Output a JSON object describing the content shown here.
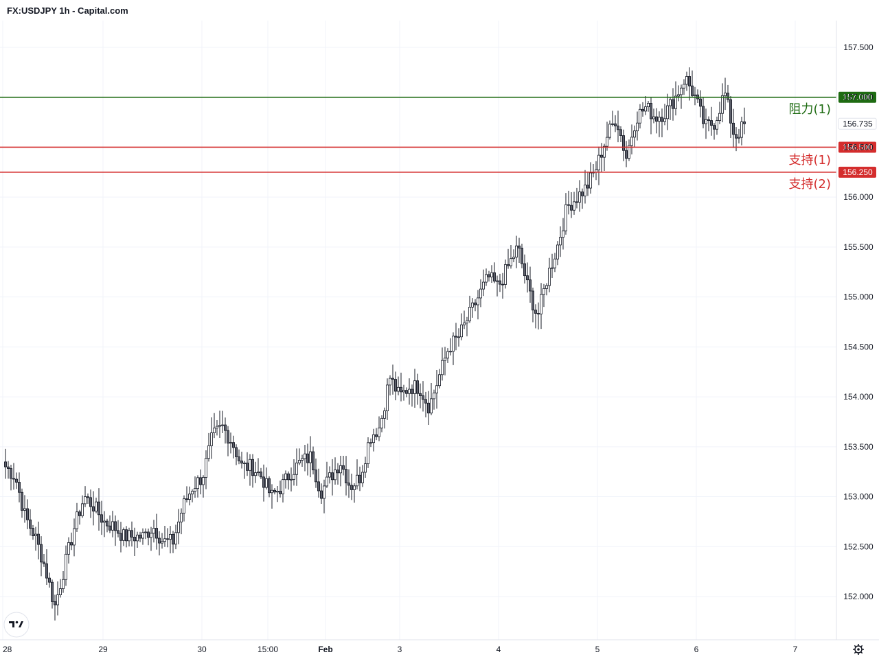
{
  "header": {
    "title": "FX:USDJPY 1h - Capital.com"
  },
  "colors": {
    "resistance": "#1e6b12",
    "support": "#d42d2d",
    "candle_up_fill": "#ffffff",
    "candle_down_fill": "#5d606b",
    "candle_border": "#131722",
    "grid": "#f0f3fa"
  },
  "icons": {
    "logo": "tradingview-logo-icon",
    "settings": "gear-icon"
  },
  "chart_data": {
    "type": "candlestick",
    "symbol": "FX:USDJPY",
    "interval": "1h",
    "ylim": [
      151.55,
      157.9
    ],
    "y_ticks": [
      "157.500",
      "157.000",
      "156.500",
      "156.000",
      "155.500",
      "155.000",
      "154.500",
      "154.000",
      "153.500",
      "153.000",
      "152.500",
      "152.000"
    ],
    "y_tick_values": [
      157.5,
      157.0,
      156.5,
      156.0,
      155.5,
      155.0,
      154.5,
      154.0,
      153.5,
      153.0,
      152.5,
      152.0
    ],
    "x_ticks": [
      "28",
      "29",
      "30",
      "15:00",
      "Feb",
      "3",
      "4",
      "5",
      "6",
      "7"
    ],
    "x_tick_bars": [
      0,
      36,
      72,
      96,
      117,
      144,
      180,
      216,
      252,
      288
    ],
    "last_price": {
      "label": "156.735",
      "value": 156.735
    },
    "levels": [
      {
        "name": "阻力(1)",
        "value": 157.0,
        "tag": "157.000",
        "kind": "resistance"
      },
      {
        "name": "支持(1)",
        "value": 156.5,
        "tag": "156.500",
        "kind": "support"
      },
      {
        "name": "支持(2)",
        "value": 156.25,
        "tag": "156.250",
        "kind": "support"
      }
    ],
    "anchor_closes": [
      153.3,
      153.2,
      152.8,
      152.6,
      152.3,
      151.9,
      152.3,
      152.7,
      153.0,
      152.9,
      152.75,
      152.7,
      152.6,
      152.6,
      152.6,
      152.7,
      152.55,
      152.55,
      152.9,
      153.1,
      153.2,
      153.6,
      153.7,
      153.55,
      153.3,
      153.3,
      153.2,
      153.0,
      153.1,
      153.25,
      153.35,
      153.4,
      153.05,
      153.2,
      153.35,
      153.1,
      153.2,
      153.6,
      153.7,
      154.2,
      154.0,
      154.1,
      154.1,
      153.9,
      154.2,
      154.5,
      154.6,
      154.8,
      155.0,
      155.2,
      155.1,
      155.3,
      155.5,
      155.1,
      154.8,
      155.2,
      155.5,
      155.9,
      156.0,
      156.1,
      156.3,
      156.6,
      156.8,
      156.4,
      156.8,
      156.9,
      156.8,
      156.85,
      157.0,
      157.2,
      157.0,
      156.7,
      156.75,
      157.05,
      156.6,
      156.72
    ],
    "bar_count": 270
  },
  "levels_labels": {
    "r1": "阻力(1)",
    "s1": "支持(1)",
    "s2": "支持(2)"
  }
}
